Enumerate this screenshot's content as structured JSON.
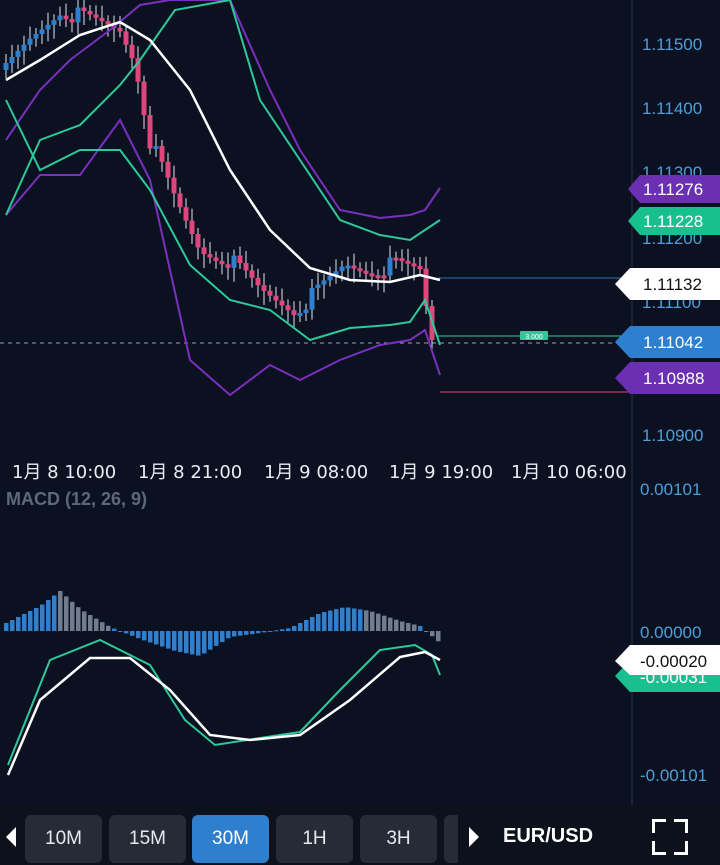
{
  "price_axis": {
    "labels": [
      "1.11500",
      "1.11400",
      "1.11300",
      "1.11200",
      "1.11100",
      "1.10900"
    ]
  },
  "price_tags": [
    {
      "value": "1.11276",
      "color": "#6a2fb3",
      "text_color": "#ffffff"
    },
    {
      "value": "1.11228",
      "color": "#18c08f",
      "text_color": "#ffffff"
    },
    {
      "value": "1.11132",
      "color": "#ffffff",
      "text_color": "#111111"
    },
    {
      "value": "1.11042",
      "color": "#2f7fcf",
      "text_color": "#ffffff"
    },
    {
      "value": "1.10988",
      "color": "#6a2fb3",
      "text_color": "#ffffff"
    }
  ],
  "time_axis": [
    "1月 8 10:00",
    "1月 8 21:00",
    "1月 9 08:00",
    "1月 9 19:00",
    "1月 10 06:00"
  ],
  "order_marker": "3.000",
  "macd": {
    "title": "MACD (12, 26, 9)",
    "axis_labels": [
      "0.00101",
      "0.00000",
      "-0.00101"
    ],
    "tags": [
      {
        "value": "-0.00020",
        "color": "#ffffff",
        "text_color": "#111111"
      },
      {
        "value": "-0.00031",
        "color": "#18c08f",
        "text_color": "#ffffff"
      }
    ]
  },
  "toolbar": {
    "timeframes": [
      "10M",
      "15M",
      "30M",
      "1H",
      "3H"
    ],
    "active_timeframe": "30M",
    "pair": "EUR/USD"
  },
  "colors": {
    "background": "#0b1120",
    "bull": "#2f7fcf",
    "bear": "#e0457b",
    "bollinger_outer": "#7b2fbf",
    "bollinger_inner": "#2ec99a",
    "moving_average": "#ffffff",
    "macd_signal": "#ffffff",
    "macd_line": "#2ec99a"
  },
  "icons": [
    "scroll-left-arrow-icon",
    "scroll-right-arrow-icon",
    "fullscreen-icon"
  ]
}
